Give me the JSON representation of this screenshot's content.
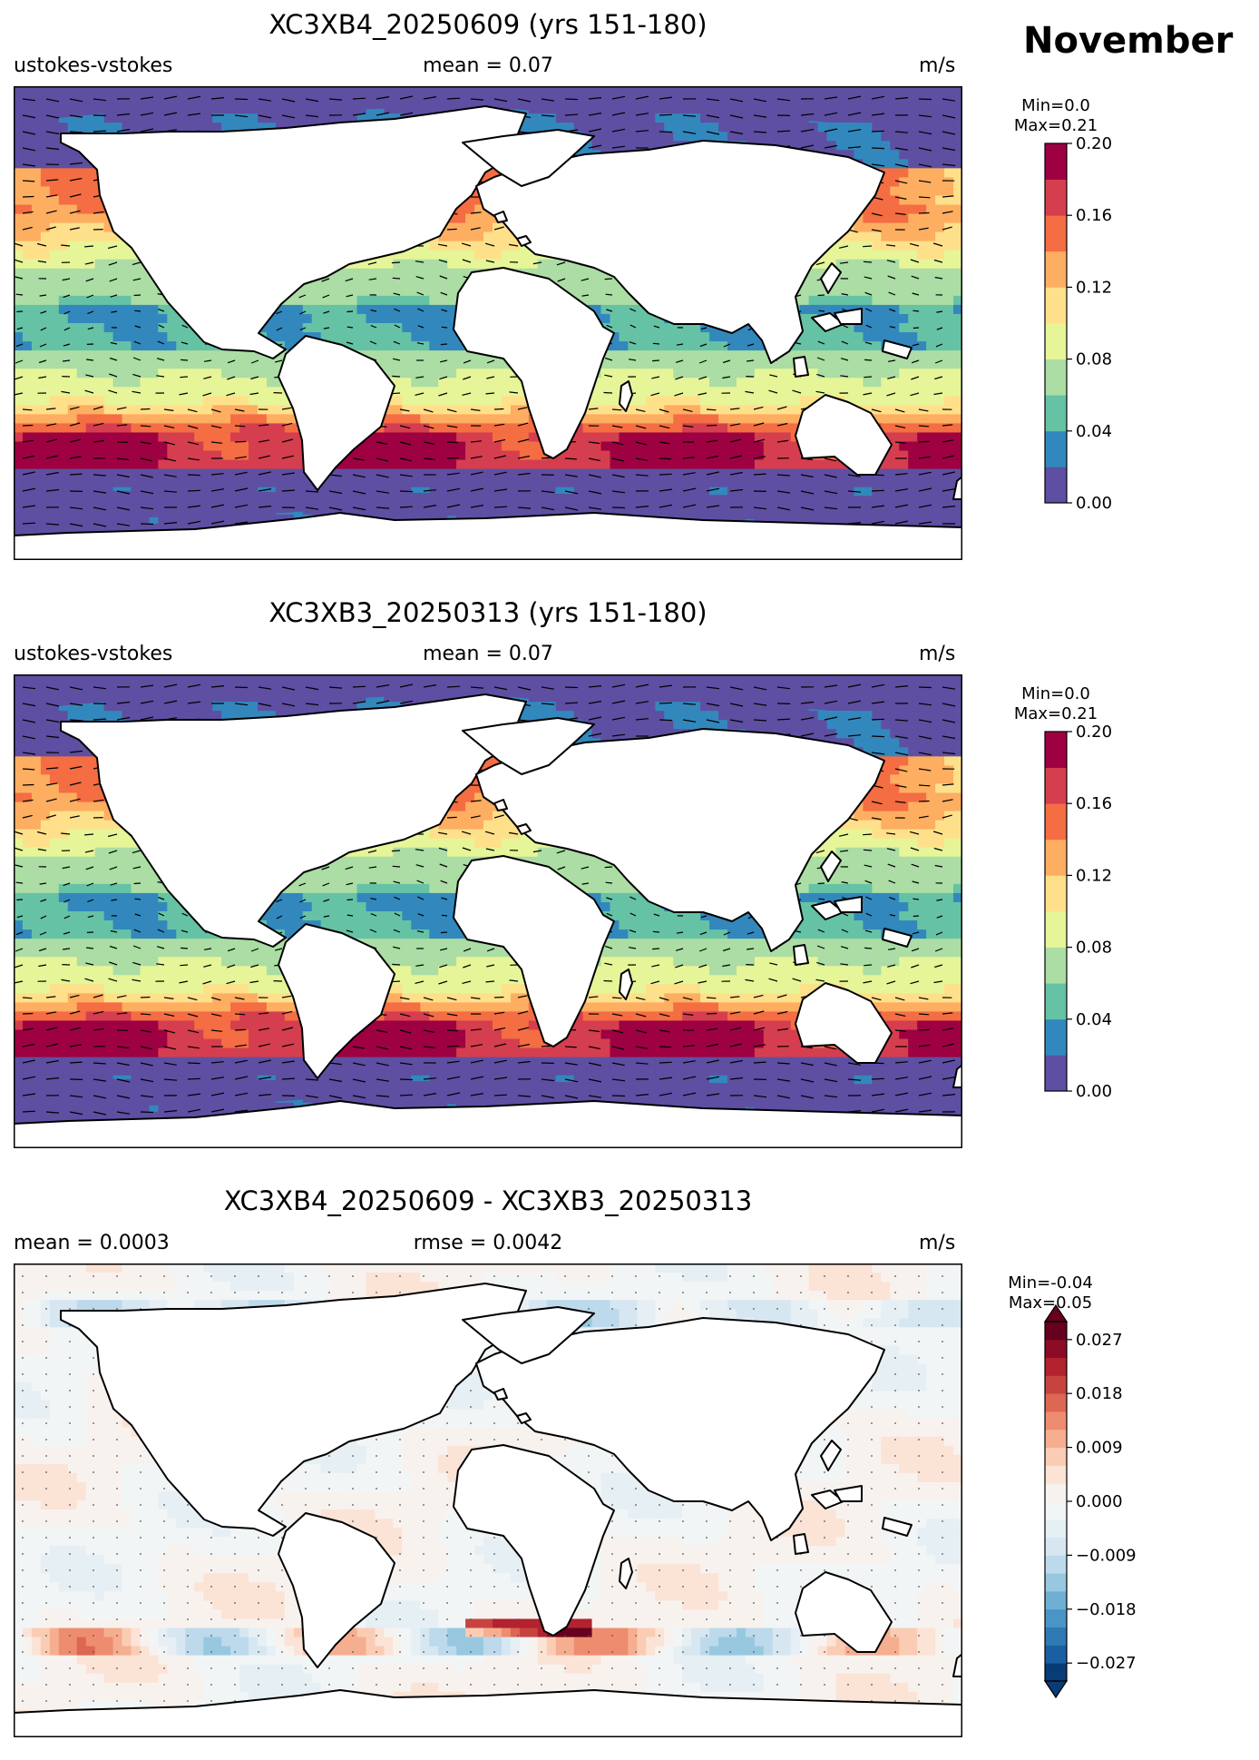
{
  "month": "November",
  "panels": [
    {
      "id": "panel-1",
      "title": "XC3XB4_20250609 (yrs 151-180)",
      "left_label": "ustokes-vstokes",
      "center_label": "mean = 0.07",
      "right_label": "m/s",
      "min_text": "Min=0.0",
      "max_text": "Max=0.21"
    },
    {
      "id": "panel-2",
      "title": "XC3XB3_20250313 (yrs 151-180)",
      "left_label": "ustokes-vstokes",
      "center_label": "mean = 0.07",
      "right_label": "m/s",
      "min_text": "Min=0.0",
      "max_text": "Max=0.21"
    },
    {
      "id": "panel-3",
      "title": "XC3XB4_20250609 - XC3XB3_20250313",
      "left_label": "mean = 0.0003",
      "center_label": "rmse = 0.0042",
      "right_label": "m/s",
      "min_text": "Min=-0.04",
      "max_text": "Max=0.05"
    }
  ],
  "colorbar_abs": {
    "levels": [
      0.0,
      0.02,
      0.04,
      0.06,
      0.08,
      0.1,
      0.12,
      0.14,
      0.16,
      0.18,
      0.2
    ],
    "colors": [
      "#5e4fa2",
      "#3288bd",
      "#66c2a5",
      "#abdda4",
      "#e6f598",
      "#fee08b",
      "#fdae61",
      "#f46d43",
      "#d53e4f",
      "#9e0142"
    ],
    "tick_labels": [
      "0.00",
      "0.04",
      "0.08",
      "0.12",
      "0.16",
      "0.20"
    ],
    "tick_values": [
      0.0,
      0.04,
      0.08,
      0.12,
      0.16,
      0.2
    ]
  },
  "colorbar_diff": {
    "levels": [
      -0.03,
      -0.027,
      -0.024,
      -0.021,
      -0.018,
      -0.015,
      -0.012,
      -0.009,
      -0.006,
      -0.003,
      0.0,
      0.003,
      0.006,
      0.009,
      0.012,
      0.015,
      0.018,
      0.021,
      0.024,
      0.027,
      0.03
    ],
    "colors": [
      "#073c75",
      "#1a5fa4",
      "#2f79b5",
      "#4a95c6",
      "#6fafd3",
      "#98c8e0",
      "#bcdaeb",
      "#d6e7f1",
      "#e6eff4",
      "#f2f5f6",
      "#f8f2ef",
      "#fbe3d6",
      "#fbccb4",
      "#f6ae90",
      "#ee8c6f",
      "#dc6753",
      "#c7433f",
      "#b2222f",
      "#8d0c25",
      "#67001f"
    ],
    "tick_labels": [
      "0.027",
      "0.018",
      "0.009",
      "0.000",
      "−0.009",
      "−0.018",
      "−0.027"
    ],
    "tick_values": [
      0.027,
      0.018,
      0.009,
      0.0,
      -0.009,
      -0.018,
      -0.027
    ]
  },
  "map_colors": {
    "land": "#ffffff",
    "coast": "#000000",
    "arrow": "#000000",
    "sea_ice_abs": "#5e4fa2"
  }
}
